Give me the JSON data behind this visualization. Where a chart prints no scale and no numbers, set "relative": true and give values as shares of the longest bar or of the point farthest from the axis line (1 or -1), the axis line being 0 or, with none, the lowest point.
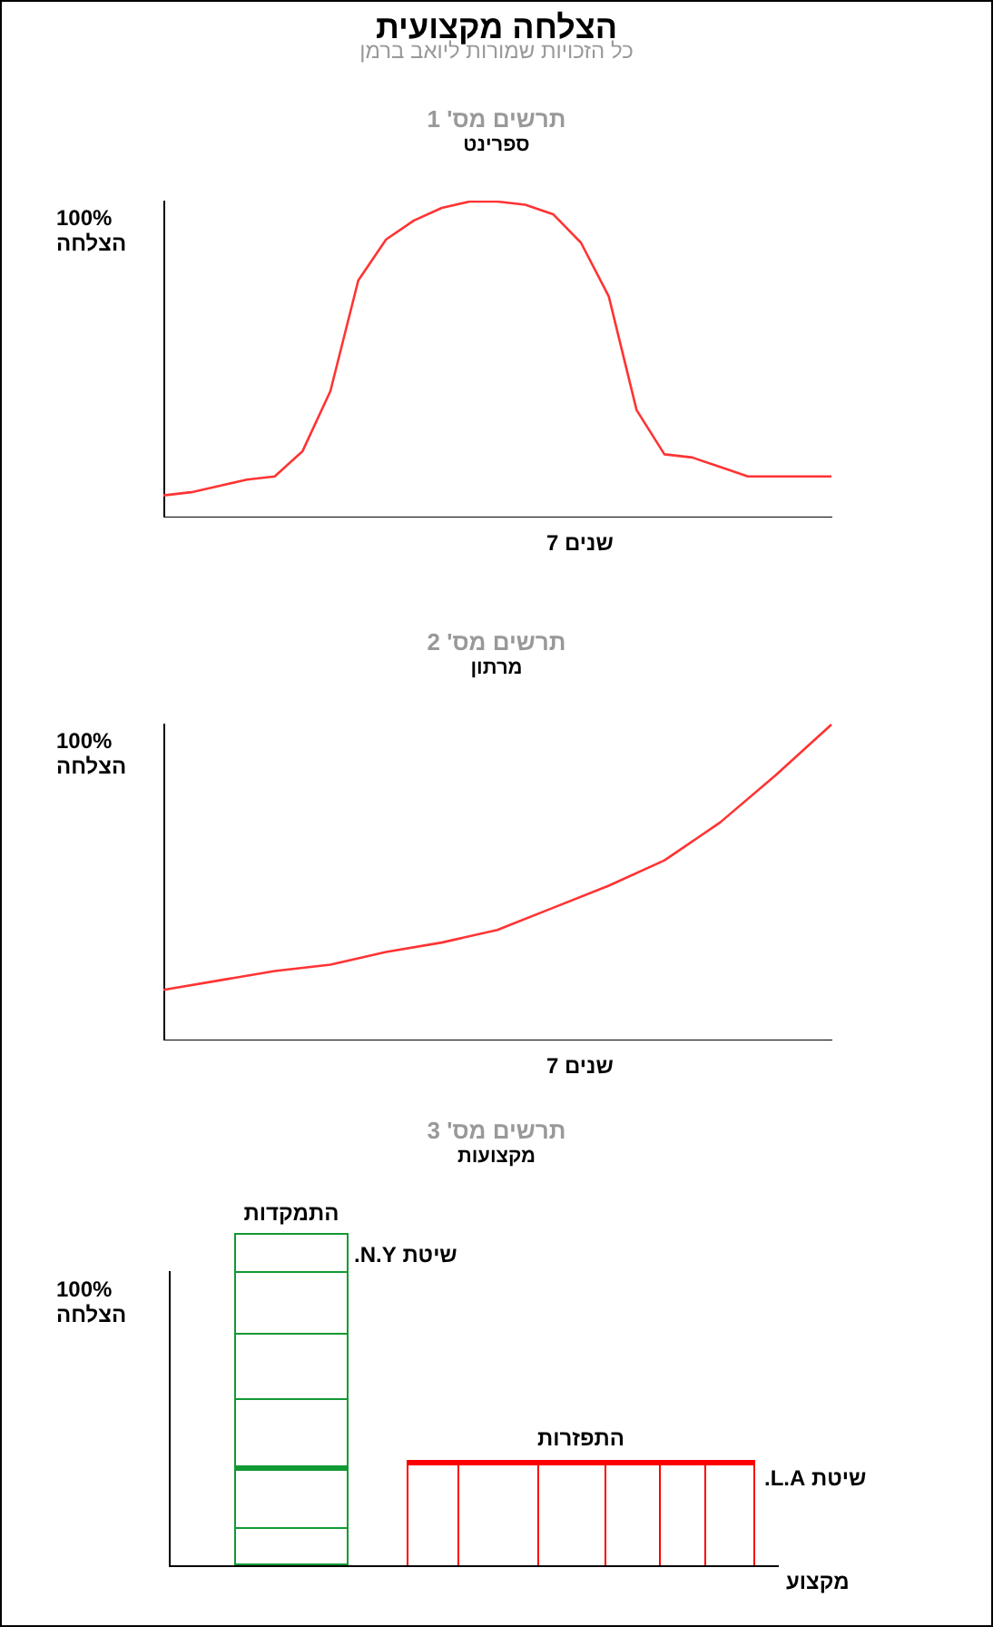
{
  "chart_data": [
    {
      "type": "other",
      "title": "הצלחה מקצועית",
      "subtitle": "כל הזכויות שמורות ליואב ברמן"
    },
    {
      "type": "line",
      "title": "תרשים מס' 1",
      "subtitle": "ספרינט",
      "xlabel": "7 שנים",
      "ylabel": "100% הצלחה",
      "relative": true,
      "marker": "none",
      "color": "#ff3333",
      "categories": [
        null,
        null,
        null,
        null,
        null,
        null,
        null,
        null,
        null,
        null,
        null,
        null,
        null,
        null,
        null,
        null,
        null,
        null,
        null,
        null,
        null,
        null,
        null,
        null,
        null
      ],
      "values": [
        0.07,
        0.08,
        0.1,
        0.12,
        0.13,
        0.21,
        0.4,
        0.75,
        0.88,
        0.94,
        0.98,
        1.0,
        1.0,
        0.99,
        0.96,
        0.87,
        0.7,
        0.34,
        0.2,
        0.19,
        0.16,
        0.13,
        0.13,
        0.13,
        0.13
      ]
    },
    {
      "type": "line",
      "title": "תרשים מס' 2",
      "subtitle": "מרתון",
      "xlabel": "7 שנים",
      "ylabel": "100% הצלחה",
      "relative": true,
      "marker": "none",
      "color": "#ff3333",
      "categories": [
        null,
        null,
        null,
        null,
        null,
        null,
        null,
        null,
        null,
        null,
        null,
        null,
        null
      ],
      "values": [
        0.16,
        0.19,
        0.22,
        0.24,
        0.28,
        0.31,
        0.35,
        0.42,
        0.49,
        0.57,
        0.69,
        0.84,
        1.0
      ]
    },
    {
      "type": "other",
      "title": "תרשים מס' 3",
      "subtitle": "מקצועות",
      "xlabel": "מקצוע",
      "ylabel": "100% הצלחה",
      "annotations": [
        "התמקדות",
        "שיטת N.Y.",
        "התפזרות",
        "שיטת L.A."
      ]
    }
  ]
}
